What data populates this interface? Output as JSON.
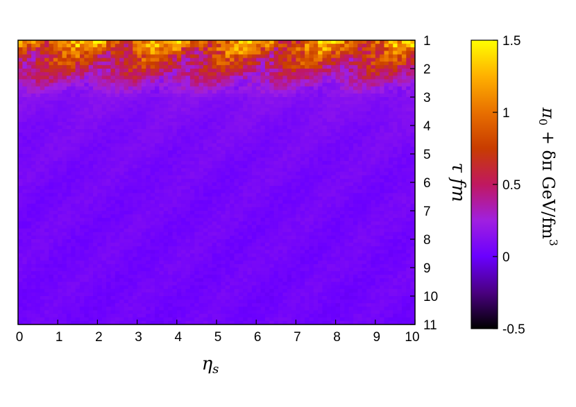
{
  "chart_data": {
    "type": "heatmap",
    "title": "",
    "xlabel": "η",
    "xlabel_sub": "s",
    "ylabel": "τ fm",
    "xlim": [
      0,
      10
    ],
    "ylim": [
      1,
      11
    ],
    "y_inverted": true,
    "x_ticks": [
      "0",
      "1",
      "2",
      "3",
      "4",
      "5",
      "6",
      "7",
      "8",
      "9",
      "10"
    ],
    "y_ticks": [
      "1",
      "2",
      "3",
      "4",
      "5",
      "6",
      "7",
      "8",
      "9",
      "10",
      "11"
    ],
    "colorbar": {
      "label": "π0 + δπ GeV/fm3",
      "label_parts": {
        "pi": "π",
        "sub0": "0",
        "rest": " + δπ GeV/fm",
        "sup3": "3"
      },
      "range": [
        -0.5,
        1.5
      ],
      "ticks": [
        "1.5",
        "1",
        "0.5",
        "0",
        "-0.5"
      ],
      "tick_values": [
        1.5,
        1,
        0.5,
        0,
        -0.5
      ],
      "palette": [
        "#000000",
        "#4a0080",
        "#6a00ff",
        "#a020e0",
        "#c01860",
        "#c83c00",
        "#e87000",
        "#ffb000",
        "#ffff00"
      ]
    },
    "description_rows": [
      {
        "tau": 1.0,
        "value": 1.1
      },
      {
        "tau": 1.5,
        "value": 0.75
      },
      {
        "tau": 2.0,
        "value": 0.55
      },
      {
        "tau": 2.5,
        "value": 0.3
      },
      {
        "tau": 3.0,
        "value": 0.12
      },
      {
        "tau": 4.0,
        "value": 0.08
      },
      {
        "tau": 6.0,
        "value": 0.05
      },
      {
        "tau": 11.0,
        "value": 0.03
      }
    ]
  }
}
